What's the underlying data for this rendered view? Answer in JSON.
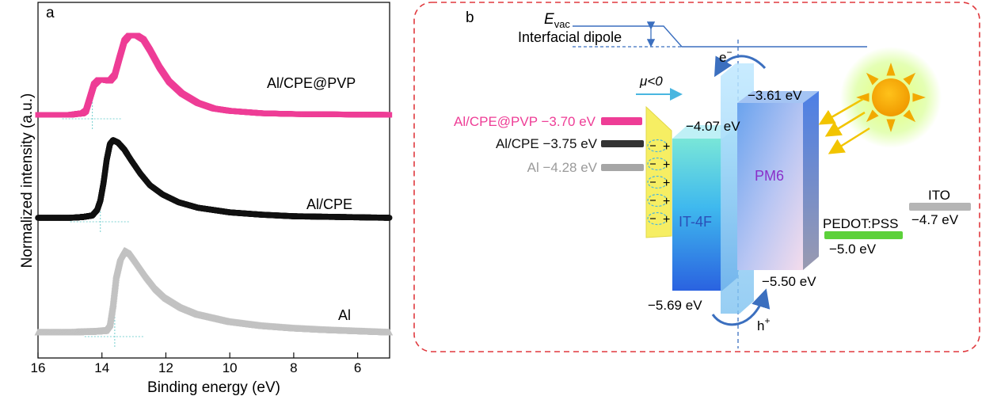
{
  "panel_a": {
    "label": "a",
    "xlabel": "Binding energy (eV)",
    "ylabel": "Normalized intensity (a.u.)",
    "xticks": [
      "16",
      "14",
      "12",
      "10",
      "8",
      "6"
    ],
    "series_labels": [
      "Al/CPE@PVP",
      "Al/CPE",
      "Al"
    ],
    "colors": {
      "Al/CPE@PVP": "#ee3d96",
      "Al/CPE": "#111111",
      "Al": "#c2c2c2",
      "guide": "#7fd3d3"
    }
  },
  "chart_data": {
    "type": "scatter",
    "xlabel": "Binding energy (eV)",
    "ylabel": "Normalized intensity (a.u.)",
    "xlim": [
      16,
      5
    ],
    "x_reversed": true,
    "x_ticks": [
      16,
      14,
      12,
      10,
      8,
      6
    ],
    "series": [
      {
        "name": "Al/CPE@PVP",
        "marker": "square",
        "color": "#ee3d96",
        "offset": 2,
        "cutoff": 14.3,
        "points": [
          [
            16,
            0.0
          ],
          [
            15.0,
            0.0
          ],
          [
            14.6,
            0.02
          ],
          [
            14.5,
            0.05
          ],
          [
            14.4,
            0.18
          ],
          [
            14.25,
            0.38
          ],
          [
            14.1,
            0.44
          ],
          [
            13.9,
            0.44
          ],
          [
            13.75,
            0.43
          ],
          [
            13.6,
            0.5
          ],
          [
            13.45,
            0.72
          ],
          [
            13.3,
            0.93
          ],
          [
            13.15,
            1.0
          ],
          [
            12.9,
            1.0
          ],
          [
            12.7,
            0.95
          ],
          [
            12.5,
            0.82
          ],
          [
            12.2,
            0.6
          ],
          [
            11.9,
            0.42
          ],
          [
            11.5,
            0.27
          ],
          [
            11.0,
            0.15
          ],
          [
            10.5,
            0.08
          ],
          [
            10.0,
            0.05
          ],
          [
            9.0,
            0.02
          ],
          [
            8.0,
            0.01
          ],
          [
            5,
            0.0
          ]
        ]
      },
      {
        "name": "Al/CPE",
        "marker": "circle",
        "color": "#111111",
        "offset": 1,
        "cutoff": 14.05,
        "points": [
          [
            16,
            0.0
          ],
          [
            15.0,
            0.0
          ],
          [
            14.6,
            0.01
          ],
          [
            14.3,
            0.03
          ],
          [
            14.15,
            0.1
          ],
          [
            14.05,
            0.22
          ],
          [
            13.95,
            0.45
          ],
          [
            13.85,
            0.75
          ],
          [
            13.75,
            0.95
          ],
          [
            13.65,
            1.0
          ],
          [
            13.5,
            0.97
          ],
          [
            13.3,
            0.88
          ],
          [
            13.1,
            0.75
          ],
          [
            12.8,
            0.57
          ],
          [
            12.5,
            0.42
          ],
          [
            12.1,
            0.3
          ],
          [
            11.6,
            0.2
          ],
          [
            11.0,
            0.13
          ],
          [
            10.0,
            0.07
          ],
          [
            9.0,
            0.04
          ],
          [
            8.0,
            0.02
          ],
          [
            5,
            0.0
          ]
        ]
      },
      {
        "name": "Al",
        "marker": "triangle",
        "color": "#c2c2c2",
        "offset": 0,
        "cutoff": 13.6,
        "points": [
          [
            16,
            0.0
          ],
          [
            15.0,
            0.0
          ],
          [
            14.2,
            0.01
          ],
          [
            13.9,
            0.02
          ],
          [
            13.75,
            0.1
          ],
          [
            13.65,
            0.35
          ],
          [
            13.55,
            0.7
          ],
          [
            13.42,
            0.92
          ],
          [
            13.3,
            1.0
          ],
          [
            13.1,
            0.96
          ],
          [
            12.9,
            0.85
          ],
          [
            12.6,
            0.68
          ],
          [
            12.3,
            0.53
          ],
          [
            12.0,
            0.42
          ],
          [
            11.5,
            0.3
          ],
          [
            11.0,
            0.22
          ],
          [
            10.0,
            0.13
          ],
          [
            9.0,
            0.08
          ],
          [
            8.0,
            0.05
          ],
          [
            7.0,
            0.03
          ],
          [
            5,
            0.0
          ]
        ]
      }
    ]
  },
  "panel_b": {
    "label": "b",
    "evac_symbol": "E",
    "evac_subscript": "vac",
    "interfacial_dipole": "Interfacial dipole",
    "mu_label": "μ<0",
    "electron": "e",
    "electron_sup": "−",
    "hole": "h",
    "hole_sup": "+",
    "cathodes": [
      {
        "text": "Al/CPE@PVP −3.70 eV",
        "color": "#ee3d96"
      },
      {
        "text": "Al/CPE −3.75 eV",
        "color": "#111111"
      },
      {
        "text": "Al −4.28 eV",
        "color": "#9a9a9a"
      }
    ],
    "dipole_sign": "+",
    "it4f": {
      "name": "IT-4F",
      "lumo": "−4.07 eV",
      "homo": "−5.69 eV"
    },
    "pm6": {
      "name": "PM6",
      "lumo": "−3.61 eV",
      "homo": "−5.50 eV"
    },
    "pedot": {
      "name": "PEDOT:PSS",
      "level": "−5.0 eV",
      "color": "#5cd13a"
    },
    "ito": {
      "name": "ITO",
      "level": "−4.7 eV"
    },
    "colors": {
      "frame": "#e0393e",
      "line": "#3b6fbf",
      "arrow_cyan": "#49b6e0",
      "sun": "#f2a900",
      "sun_ray": "#f2c400"
    }
  }
}
